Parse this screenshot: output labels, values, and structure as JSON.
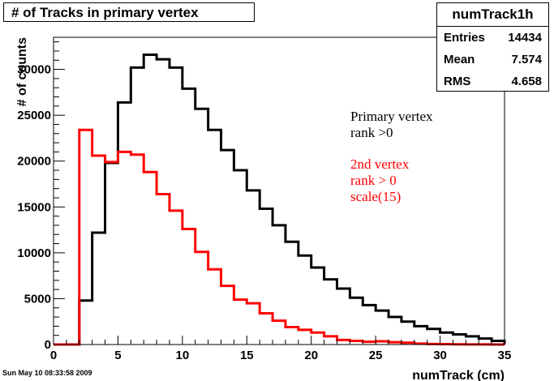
{
  "title": "# of Tracks in primary vertex",
  "stats": {
    "name": "numTrack1h",
    "rows": [
      {
        "label": "Entries",
        "value": "14434"
      },
      {
        "label": "Mean",
        "value": "7.574"
      },
      {
        "label": "RMS",
        "value": "4.658"
      }
    ]
  },
  "footer": "Sun May 10 08:33:58 2009",
  "chart_data": {
    "type": "histogram",
    "xlabel": "numTrack (cm)",
    "ylabel": "# of counts",
    "xlim": [
      0,
      35
    ],
    "ylim": [
      0,
      33500
    ],
    "xticks": [
      0,
      5,
      10,
      15,
      20,
      25,
      30,
      35
    ],
    "yticks": [
      0,
      5000,
      10000,
      15000,
      20000,
      25000,
      30000
    ],
    "bin_width": 1,
    "bin_edges_start": 0,
    "series": [
      {
        "color": "#000000",
        "values": [
          0,
          0,
          4800,
          12200,
          19800,
          26400,
          30200,
          31600,
          31100,
          30200,
          27900,
          25700,
          23400,
          21200,
          19000,
          16800,
          14800,
          13000,
          11200,
          9700,
          8400,
          7100,
          6100,
          5100,
          4300,
          3700,
          3000,
          2500,
          2000,
          1700,
          1300,
          1100,
          900,
          650,
          400
        ]
      },
      {
        "color": "#ff0000",
        "values": [
          0,
          0,
          23400,
          20600,
          19900,
          21000,
          20700,
          18800,
          16400,
          14600,
          12600,
          10100,
          8200,
          6400,
          4900,
          4500,
          3400,
          2600,
          1900,
          1600,
          1300,
          900,
          500,
          400,
          300,
          350,
          250,
          200,
          100,
          60,
          40,
          25,
          15,
          10,
          5
        ]
      }
    ],
    "annotations": [
      {
        "lines": [
          "Primary vertex",
          "rank >0"
        ],
        "color": "#000000"
      },
      {
        "lines": [
          "2nd vertex",
          "rank > 0",
          "scale(15)"
        ],
        "color": "#ff0000"
      }
    ]
  }
}
